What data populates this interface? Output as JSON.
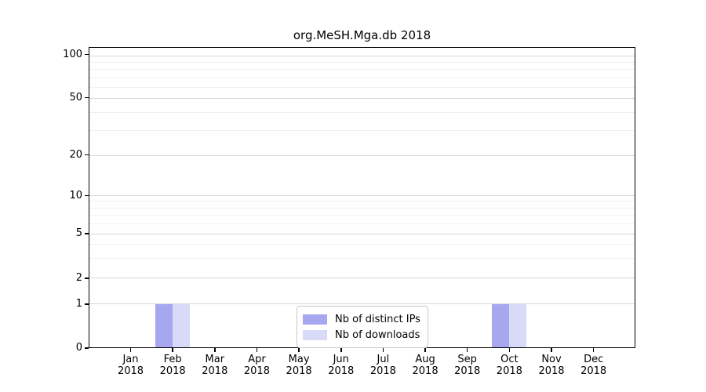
{
  "chart_data": {
    "type": "bar",
    "title": "org.MeSH.Mga.db 2018",
    "categories": [
      "Jan",
      "Feb",
      "Mar",
      "Apr",
      "May",
      "Jun",
      "Jul",
      "Aug",
      "Sep",
      "Oct",
      "Nov",
      "Dec"
    ],
    "x_tick_second_line": "2018",
    "series": [
      {
        "name": "Nb of distinct IPs",
        "color": "#a7a7f0",
        "values": [
          0,
          1,
          0,
          0,
          0,
          0,
          0,
          0,
          0,
          1,
          0,
          0
        ]
      },
      {
        "name": "Nb of downloads",
        "color": "#d9d9f8",
        "values": [
          0,
          1,
          0,
          0,
          0,
          0,
          0,
          0,
          0,
          1,
          0,
          0
        ]
      }
    ],
    "y_ticks": [
      0,
      1,
      2,
      5,
      10,
      20,
      50,
      100
    ],
    "y_minor_gridlines": [
      3,
      4,
      6,
      7,
      8,
      9,
      30,
      40,
      60,
      70,
      80,
      90
    ],
    "ylim": [
      0,
      110
    ],
    "y_scale": "log-like (compressed log scale with 0 baseline)",
    "grid": true,
    "legend_position": "lower center, inside plot",
    "colors": {
      "axis": "#000000",
      "major_grid": "#d7d7d7",
      "minor_grid": "#f0f0f0",
      "background": "#ffffff",
      "legend_border": "#c8c8c8"
    }
  }
}
